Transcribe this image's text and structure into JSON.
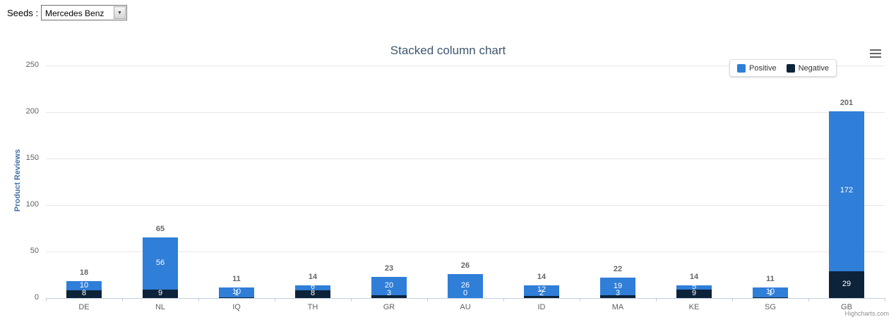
{
  "seeds": {
    "label": "Seeds :",
    "selected": "Mercedes Benz",
    "options": [
      "Mercedes Benz"
    ]
  },
  "icons": {
    "context_menu": "hamburger-icon",
    "dropdown": "dropdown-arrow-icon"
  },
  "chart_data": {
    "type": "bar",
    "variant": "stacked-column",
    "title": "Stacked column chart",
    "xlabel": "",
    "ylabel": "Product Reviews",
    "credits": "Highcharts.com",
    "categories": [
      "DE",
      "NL",
      "IQ",
      "TH",
      "GR",
      "AU",
      "ID",
      "MA",
      "KE",
      "SG",
      "GB"
    ],
    "series": [
      {
        "name": "Positive",
        "color": "#2f7ed8",
        "values": [
          10,
          56,
          10,
          6,
          20,
          26,
          12,
          19,
          5,
          10,
          172
        ]
      },
      {
        "name": "Negative",
        "color": "#0d233a",
        "values": [
          8,
          9,
          1,
          8,
          3,
          0,
          2,
          3,
          9,
          1,
          29
        ]
      }
    ],
    "totals": [
      18,
      65,
      11,
      14,
      23,
      26,
      14,
      22,
      14,
      11,
      201
    ],
    "ylim": [
      0,
      250
    ],
    "yticks": [
      0,
      50,
      100,
      150,
      200,
      250
    ],
    "grid": true,
    "legend_position": "top-right"
  }
}
